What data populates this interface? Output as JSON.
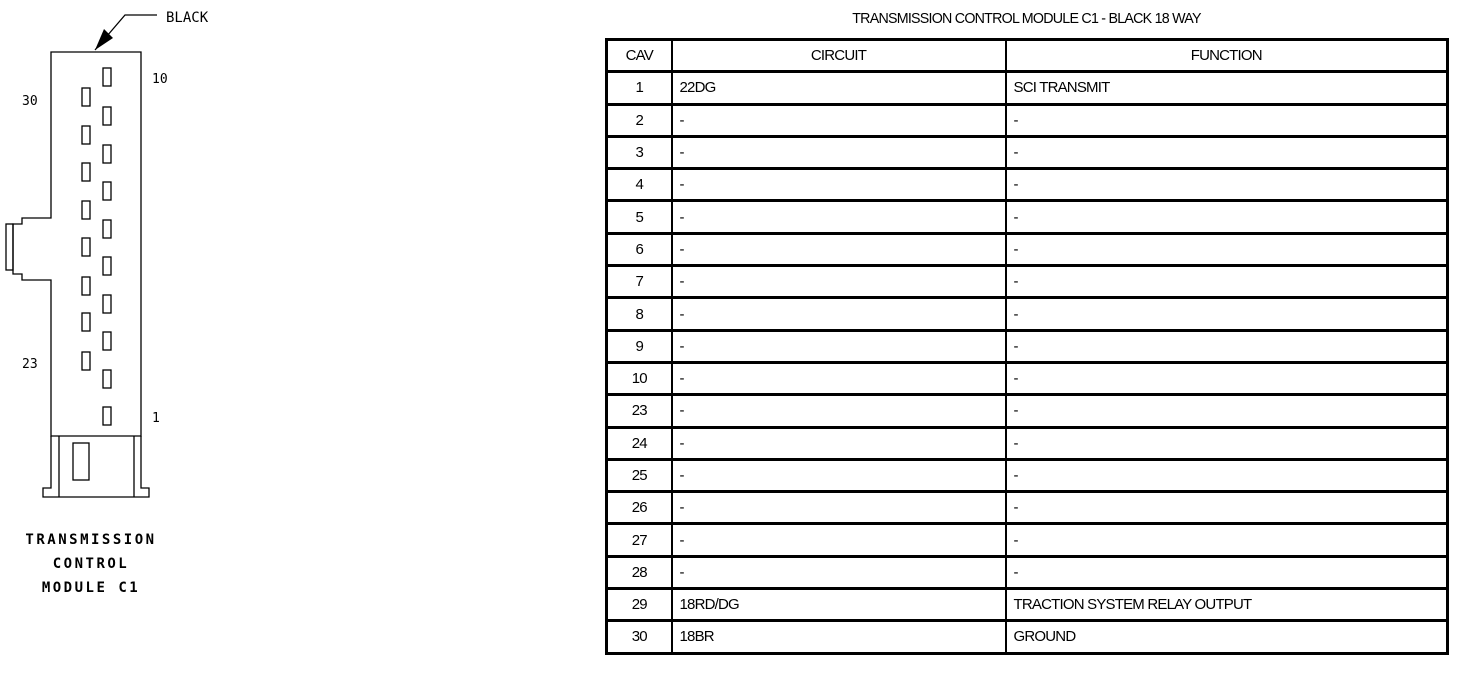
{
  "connector": {
    "color_label": "BLACK",
    "pin_labels": {
      "top_left": "30",
      "top_right": "10",
      "bottom_left": "23",
      "bottom_right": "1"
    },
    "caption": [
      "TRANSMISSION",
      "CONTROL",
      "MODULE C1"
    ]
  },
  "table": {
    "title": "TRANSMISSION CONTROL MODULE C1 - BLACK 18 WAY",
    "headers": [
      "CAV",
      "CIRCUIT",
      "FUNCTION"
    ],
    "rows": [
      {
        "cav": "1",
        "circuit": "22DG",
        "function": "SCI TRANSMIT"
      },
      {
        "cav": "2",
        "circuit": "-",
        "function": "-"
      },
      {
        "cav": "3",
        "circuit": "-",
        "function": "-"
      },
      {
        "cav": "4",
        "circuit": "-",
        "function": "-"
      },
      {
        "cav": "5",
        "circuit": "-",
        "function": "-"
      },
      {
        "cav": "6",
        "circuit": "-",
        "function": "-"
      },
      {
        "cav": "7",
        "circuit": "-",
        "function": "-"
      },
      {
        "cav": "8",
        "circuit": "-",
        "function": "-"
      },
      {
        "cav": "9",
        "circuit": "-",
        "function": "-"
      },
      {
        "cav": "10",
        "circuit": "-",
        "function": "-"
      },
      {
        "cav": "23",
        "circuit": "-",
        "function": "-"
      },
      {
        "cav": "24",
        "circuit": "-",
        "function": "-"
      },
      {
        "cav": "25",
        "circuit": "-",
        "function": "-"
      },
      {
        "cav": "26",
        "circuit": "-",
        "function": "-"
      },
      {
        "cav": "27",
        "circuit": "-",
        "function": "-"
      },
      {
        "cav": "28",
        "circuit": "-",
        "function": "-"
      },
      {
        "cav": "29",
        "circuit": "18RD/DG",
        "function": "TRACTION SYSTEM RELAY OUTPUT"
      },
      {
        "cav": "30",
        "circuit": "18BR",
        "function": "GROUND"
      }
    ]
  }
}
